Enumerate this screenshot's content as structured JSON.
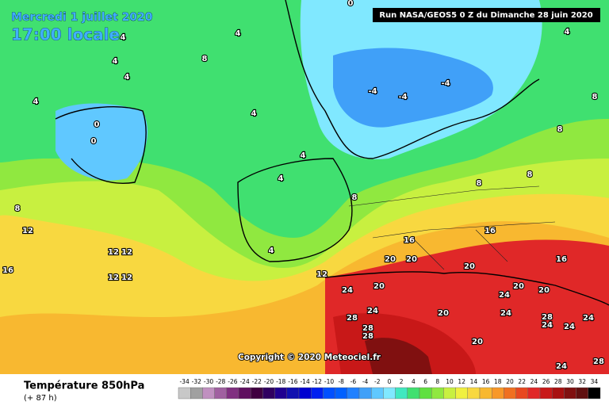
{
  "header": {
    "date": "Mercredi 1 juillet 2020",
    "time": "17:00 locale",
    "run": "Run NASA/GEOS5 0 Z du Dimanche 28 juin 2020"
  },
  "copyright": "Copyright © 2020 Meteociel.fr",
  "footer": {
    "title": "Température 850hPa",
    "lead": "(+ 87 h)"
  },
  "scale": {
    "values": [
      -34,
      -32,
      -30,
      -28,
      -26,
      -24,
      -22,
      -20,
      -18,
      -16,
      -14,
      -12,
      -10,
      -8,
      -6,
      -4,
      -2,
      0,
      2,
      4,
      6,
      8,
      10,
      12,
      14,
      16,
      18,
      20,
      22,
      24,
      26,
      28,
      30,
      32,
      34
    ],
    "colors": [
      "#c8c8c8",
      "#a0a0a0",
      "#c090c0",
      "#a060a0",
      "#803080",
      "#601060",
      "#400040",
      "#300060",
      "#200090",
      "#1010b0",
      "#0000d0",
      "#0020f0",
      "#0050ff",
      "#0060ff",
      "#2080ff",
      "#40a0f8",
      "#60c8ff",
      "#80e8ff",
      "#40e8c0",
      "#40e070",
      "#60e040",
      "#90e840",
      "#c8f040",
      "#f0f040",
      "#f8d840",
      "#f8b830",
      "#f89828",
      "#f07020",
      "#e84820",
      "#e02828",
      "#c81818",
      "#a81010",
      "#801010",
      "#601010",
      "#000000"
    ]
  },
  "map": {
    "labels": [
      "4",
      "4",
      "4",
      "4",
      "8",
      "4",
      "0",
      "0",
      "4",
      "-4",
      "-4",
      "-4",
      "4",
      "4",
      "4",
      "8",
      "12",
      "12",
      "12",
      "12",
      "12",
      "16",
      "8",
      "8",
      "8",
      "8",
      "16",
      "16",
      "20",
      "20",
      "20",
      "20",
      "20",
      "20",
      "24",
      "24",
      "24",
      "24",
      "28",
      "28",
      "28",
      "28",
      "24",
      "24",
      "24",
      "20",
      "24",
      "28",
      "16",
      "20",
      "12",
      "0",
      "4",
      "8"
    ]
  }
}
